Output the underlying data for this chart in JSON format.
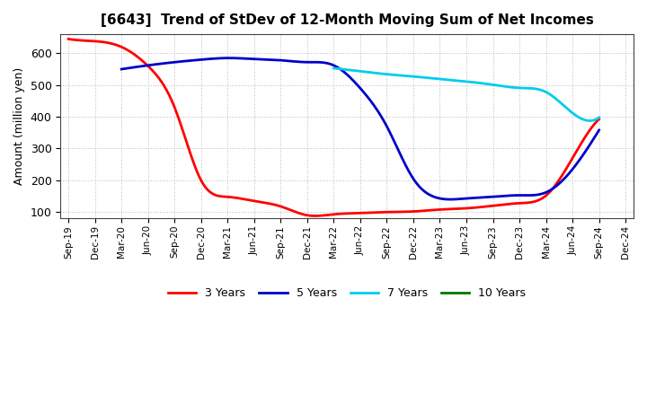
{
  "title": "[6643]  Trend of StDev of 12-Month Moving Sum of Net Incomes",
  "ylabel": "Amount (million yen)",
  "background_color": "#ffffff",
  "grid_color": "#bbbbbb",
  "ylim": [
    80,
    660
  ],
  "yticks": [
    100,
    200,
    300,
    400,
    500,
    600
  ],
  "x_labels": [
    "Sep-19",
    "Dec-19",
    "Mar-20",
    "Jun-20",
    "Sep-20",
    "Dec-20",
    "Mar-21",
    "Jun-21",
    "Sep-21",
    "Dec-21",
    "Mar-22",
    "Jun-22",
    "Sep-22",
    "Dec-22",
    "Mar-23",
    "Jun-23",
    "Sep-23",
    "Dec-23",
    "Mar-24",
    "Jun-24",
    "Sep-24",
    "Dec-24"
  ],
  "series": {
    "3 Years": {
      "color": "#ff0000",
      "lw": 2.0,
      "values": [
        645,
        638,
        620,
        560,
        430,
        200,
        148,
        135,
        118,
        90,
        93,
        97,
        100,
        102,
        108,
        112,
        120,
        128,
        152,
        270,
        393,
        null
      ]
    },
    "5 Years": {
      "color": "#0000cc",
      "lw": 2.0,
      "values": [
        null,
        null,
        550,
        562,
        572,
        580,
        585,
        582,
        578,
        572,
        562,
        490,
        370,
        205,
        143,
        143,
        148,
        153,
        162,
        235,
        358,
        null
      ]
    },
    "7 Years": {
      "color": "#00ccee",
      "lw": 2.0,
      "values": [
        null,
        null,
        null,
        null,
        null,
        null,
        null,
        null,
        null,
        null,
        553,
        543,
        534,
        527,
        519,
        511,
        501,
        491,
        478,
        412,
        398,
        null
      ]
    },
    "10 Years": {
      "color": "#007700",
      "lw": 2.0,
      "values": [
        null,
        null,
        null,
        null,
        null,
        null,
        null,
        null,
        null,
        null,
        null,
        null,
        null,
        null,
        null,
        null,
        null,
        null,
        null,
        null,
        null,
        null
      ]
    }
  },
  "legend_order": [
    "3 Years",
    "5 Years",
    "7 Years",
    "10 Years"
  ]
}
